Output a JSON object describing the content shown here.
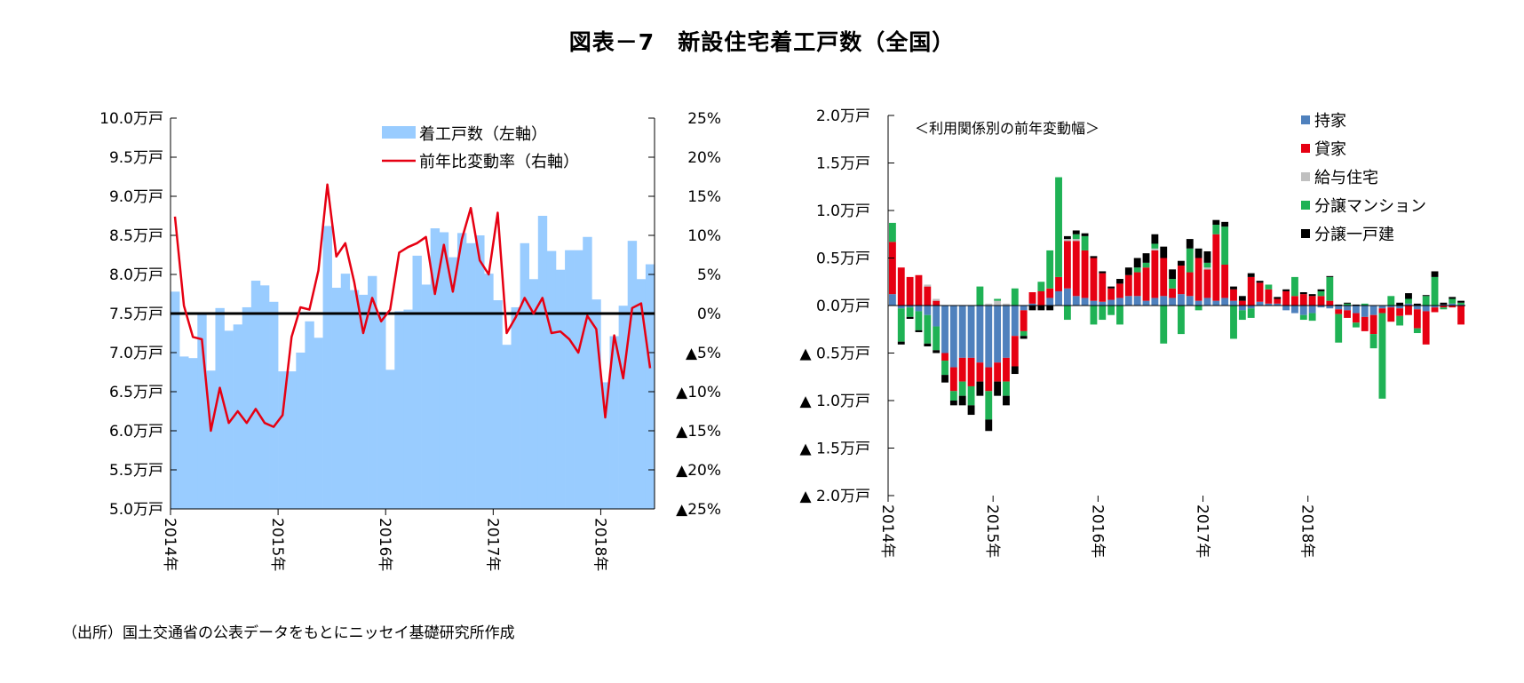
{
  "title": "図表－7　新設住宅着工戸数（全国）",
  "source": "（出所）国土交通省の公表データをもとにニッセイ基礎研究所作成",
  "chart_data": [
    {
      "type": "bar",
      "left_axis": {
        "ticks": [
          "10.0万戸",
          "9.5万戸",
          "9.0万戸",
          "8.5万戸",
          "8.0万戸",
          "7.5万戸",
          "7.0万戸",
          "6.5万戸",
          "6.0万戸",
          "5.5万戸",
          "5.0万戸"
        ],
        "ylim": [
          5.0,
          10.0
        ]
      },
      "right_axis": {
        "ticks": [
          "25%",
          "20%",
          "15%",
          "10%",
          "5%",
          "0%",
          "▲5%",
          "▲10%",
          "▲15%",
          "▲20%",
          "▲25%"
        ],
        "ylim": [
          -25,
          25
        ]
      },
      "x_ticks": [
        "2014年",
        "2015年",
        "2016年",
        "2017年",
        "2018年"
      ],
      "legend": [
        "着工戸数（左軸）",
        "前年比変動率（右軸）"
      ],
      "bar_color": "#99ccff",
      "line_color": "#e60012",
      "series": [
        {
          "name": "着工戸数（左軸）",
          "axis": "left",
          "values": [
            7.78,
            6.95,
            6.93,
            7.5,
            6.77,
            7.57,
            7.28,
            7.36,
            7.58,
            7.92,
            7.86,
            7.65,
            6.76,
            6.76,
            7.0,
            7.4,
            7.19,
            8.62,
            7.83,
            8.01,
            7.8,
            7.74,
            7.98,
            7.52,
            6.78,
            7.53,
            7.55,
            8.24,
            7.87,
            8.59,
            8.54,
            8.22,
            8.53,
            8.4,
            8.5,
            8.01,
            7.67,
            7.1,
            7.58,
            8.4,
            7.94,
            8.75,
            8.3,
            8.06,
            8.31,
            8.31,
            8.48,
            7.68,
            6.62,
            7.21,
            7.6,
            8.43,
            7.94,
            8.13
          ]
        },
        {
          "name": "前年比変動率（右軸）",
          "axis": "right",
          "values": [
            12.4,
            1.0,
            -3.0,
            -3.3,
            -15.0,
            -9.5,
            -14.0,
            -12.5,
            -14.0,
            -12.2,
            -14.0,
            -14.5,
            -13.0,
            -3.0,
            0.8,
            0.5,
            5.5,
            16.5,
            7.3,
            9.0,
            4.0,
            -2.5,
            2.0,
            -1.0,
            0.5,
            7.8,
            8.5,
            9.0,
            9.8,
            2.5,
            8.8,
            2.8,
            9.5,
            13.5,
            6.8,
            5.0,
            12.9,
            -2.5,
            -0.5,
            2.0,
            0.0,
            2.0,
            -2.5,
            -2.3,
            -3.3,
            -5.0,
            -0.3,
            -2.0,
            -13.3,
            -2.8,
            -8.3,
            0.7,
            1.3,
            -7.0
          ]
        }
      ]
    },
    {
      "type": "bar",
      "stacked": true,
      "subtitle": "＜利用関係別の前年変動幅＞",
      "y_ticks": [
        "2.0万戸",
        "1.5万戸",
        "1.0万戸",
        "0.5万戸",
        "0.0万戸",
        "▲ 0.5万戸",
        "▲ 1.0万戸",
        "▲ 1.5万戸",
        "▲ 2.0万戸"
      ],
      "ylim": [
        -2.0,
        2.0
      ],
      "x_ticks": [
        "2014年",
        "2015年",
        "2016年",
        "2017年",
        "2018年"
      ],
      "legend": [
        "持家",
        "貸家",
        "給与住宅",
        "分譲マンション",
        "分譲一戸建"
      ],
      "colors": {
        "持家": "#4f81bd",
        "貸家": "#e60012",
        "給与住宅": "#c0c0c0",
        "分譲マンション": "#1fb255",
        "分譲一戸建": "#000000"
      },
      "series": [
        {
          "name": "持家",
          "values": [
            0.12,
            -0.03,
            -0.02,
            -0.06,
            -0.1,
            -0.22,
            -0.5,
            -0.65,
            -0.55,
            -0.55,
            -0.6,
            -0.65,
            -0.6,
            -0.55,
            -0.32,
            -0.05,
            0.02,
            0.0,
            0.08,
            0.15,
            0.18,
            0.1,
            0.08,
            0.05,
            0.04,
            0.06,
            0.08,
            0.1,
            0.1,
            0.05,
            0.08,
            0.1,
            0.08,
            0.12,
            0.1,
            0.05,
            0.08,
            0.05,
            0.08,
            0.05,
            -0.05,
            -0.03,
            0.04,
            0.02,
            0.02,
            -0.05,
            -0.08,
            -0.1,
            -0.08,
            -0.02,
            -0.03,
            -0.04,
            -0.05,
            -0.08,
            -0.12,
            -0.1,
            -0.03,
            -0.02,
            -0.03,
            0.02,
            -0.04,
            -0.06,
            -0.02,
            0.01,
            0.02,
            0.01
          ]
        },
        {
          "name": "貸家",
          "values": [
            0.55,
            0.4,
            0.3,
            0.32,
            0.2,
            0.05,
            -0.08,
            -0.25,
            -0.25,
            -0.3,
            -0.2,
            -0.25,
            -0.2,
            -0.25,
            -0.32,
            -0.22,
            0.12,
            0.15,
            0.1,
            0.15,
            0.5,
            0.58,
            0.5,
            0.45,
            0.3,
            0.12,
            0.15,
            0.22,
            0.25,
            0.35,
            0.5,
            0.4,
            0.1,
            0.3,
            0.25,
            0.45,
            0.3,
            0.7,
            0.35,
            0.12,
            0.05,
            0.3,
            0.2,
            0.15,
            0.05,
            0.15,
            0.1,
            0.12,
            0.1,
            0.1,
            0.05,
            -0.05,
            -0.08,
            -0.1,
            -0.15,
            -0.2,
            -0.05,
            -0.15,
            -0.08,
            -0.1,
            -0.2,
            -0.35,
            -0.05,
            -0.02,
            -0.02,
            -0.2
          ]
        },
        {
          "name": "給与住宅",
          "values": [
            0.0,
            0.0,
            0.0,
            0.0,
            0.02,
            0.02,
            0.0,
            0.0,
            0.0,
            0.0,
            0.0,
            0.02,
            0.05,
            0.02,
            0.0,
            0.0,
            0.0,
            0.0,
            0.0,
            0.0,
            0.02,
            0.02,
            0.0,
            0.0,
            0.0,
            0.0,
            0.0,
            0.0,
            0.0,
            0.0,
            0.02,
            0.0,
            0.0,
            0.0,
            0.0,
            0.0,
            0.02,
            0.0,
            0.0,
            0.0,
            0.0,
            0.0,
            0.0,
            0.0,
            0.0,
            0.0,
            0.0,
            0.0,
            0.0,
            0.0,
            0.0,
            0.0,
            0.0,
            0.0,
            0.0,
            0.0,
            0.0,
            0.0,
            0.0,
            0.0,
            0.0,
            0.0,
            0.0,
            0.0,
            0.0,
            0.0
          ]
        },
        {
          "name": "分譲マンション",
          "values": [
            0.2,
            -0.35,
            -0.1,
            -0.2,
            -0.3,
            -0.25,
            -0.15,
            -0.1,
            -0.15,
            -0.2,
            0.2,
            -0.3,
            0.02,
            -0.15,
            0.18,
            -0.05,
            0.0,
            0.1,
            0.4,
            1.05,
            -0.15,
            0.05,
            0.15,
            -0.2,
            -0.15,
            -0.1,
            -0.2,
            0.0,
            0.05,
            0.05,
            0.05,
            -0.4,
            0.1,
            -0.3,
            0.25,
            -0.05,
            0.05,
            0.1,
            0.4,
            -0.35,
            -0.1,
            -0.1,
            0.0,
            0.05,
            0.0,
            0.0,
            0.2,
            -0.05,
            -0.08,
            0.05,
            0.25,
            -0.3,
            0.02,
            -0.05,
            0.02,
            -0.15,
            -0.9,
            0.1,
            -0.1,
            0.05,
            -0.05,
            0.1,
            0.3,
            -0.02,
            0.05,
            0.02
          ]
        },
        {
          "name": "分譲一戸建",
          "values": [
            0.0,
            -0.03,
            -0.02,
            -0.02,
            -0.03,
            -0.03,
            -0.08,
            -0.05,
            -0.1,
            -0.1,
            -0.15,
            -0.12,
            -0.15,
            -0.1,
            -0.08,
            -0.03,
            -0.05,
            -0.05,
            -0.05,
            0.0,
            0.03,
            0.04,
            0.03,
            0.02,
            0.02,
            0.02,
            0.05,
            0.08,
            0.1,
            0.1,
            0.1,
            0.12,
            0.1,
            0.05,
            0.1,
            0.1,
            0.12,
            0.05,
            0.05,
            0.03,
            0.05,
            0.04,
            0.02,
            0.0,
            0.02,
            0.02,
            0.0,
            0.02,
            0.02,
            0.02,
            0.01,
            0.01,
            0.01,
            0.01,
            0.0,
            0.0,
            0.0,
            0.0,
            0.03,
            0.06,
            0.02,
            0.01,
            0.06,
            0.02,
            0.02,
            0.02
          ]
        }
      ]
    }
  ]
}
